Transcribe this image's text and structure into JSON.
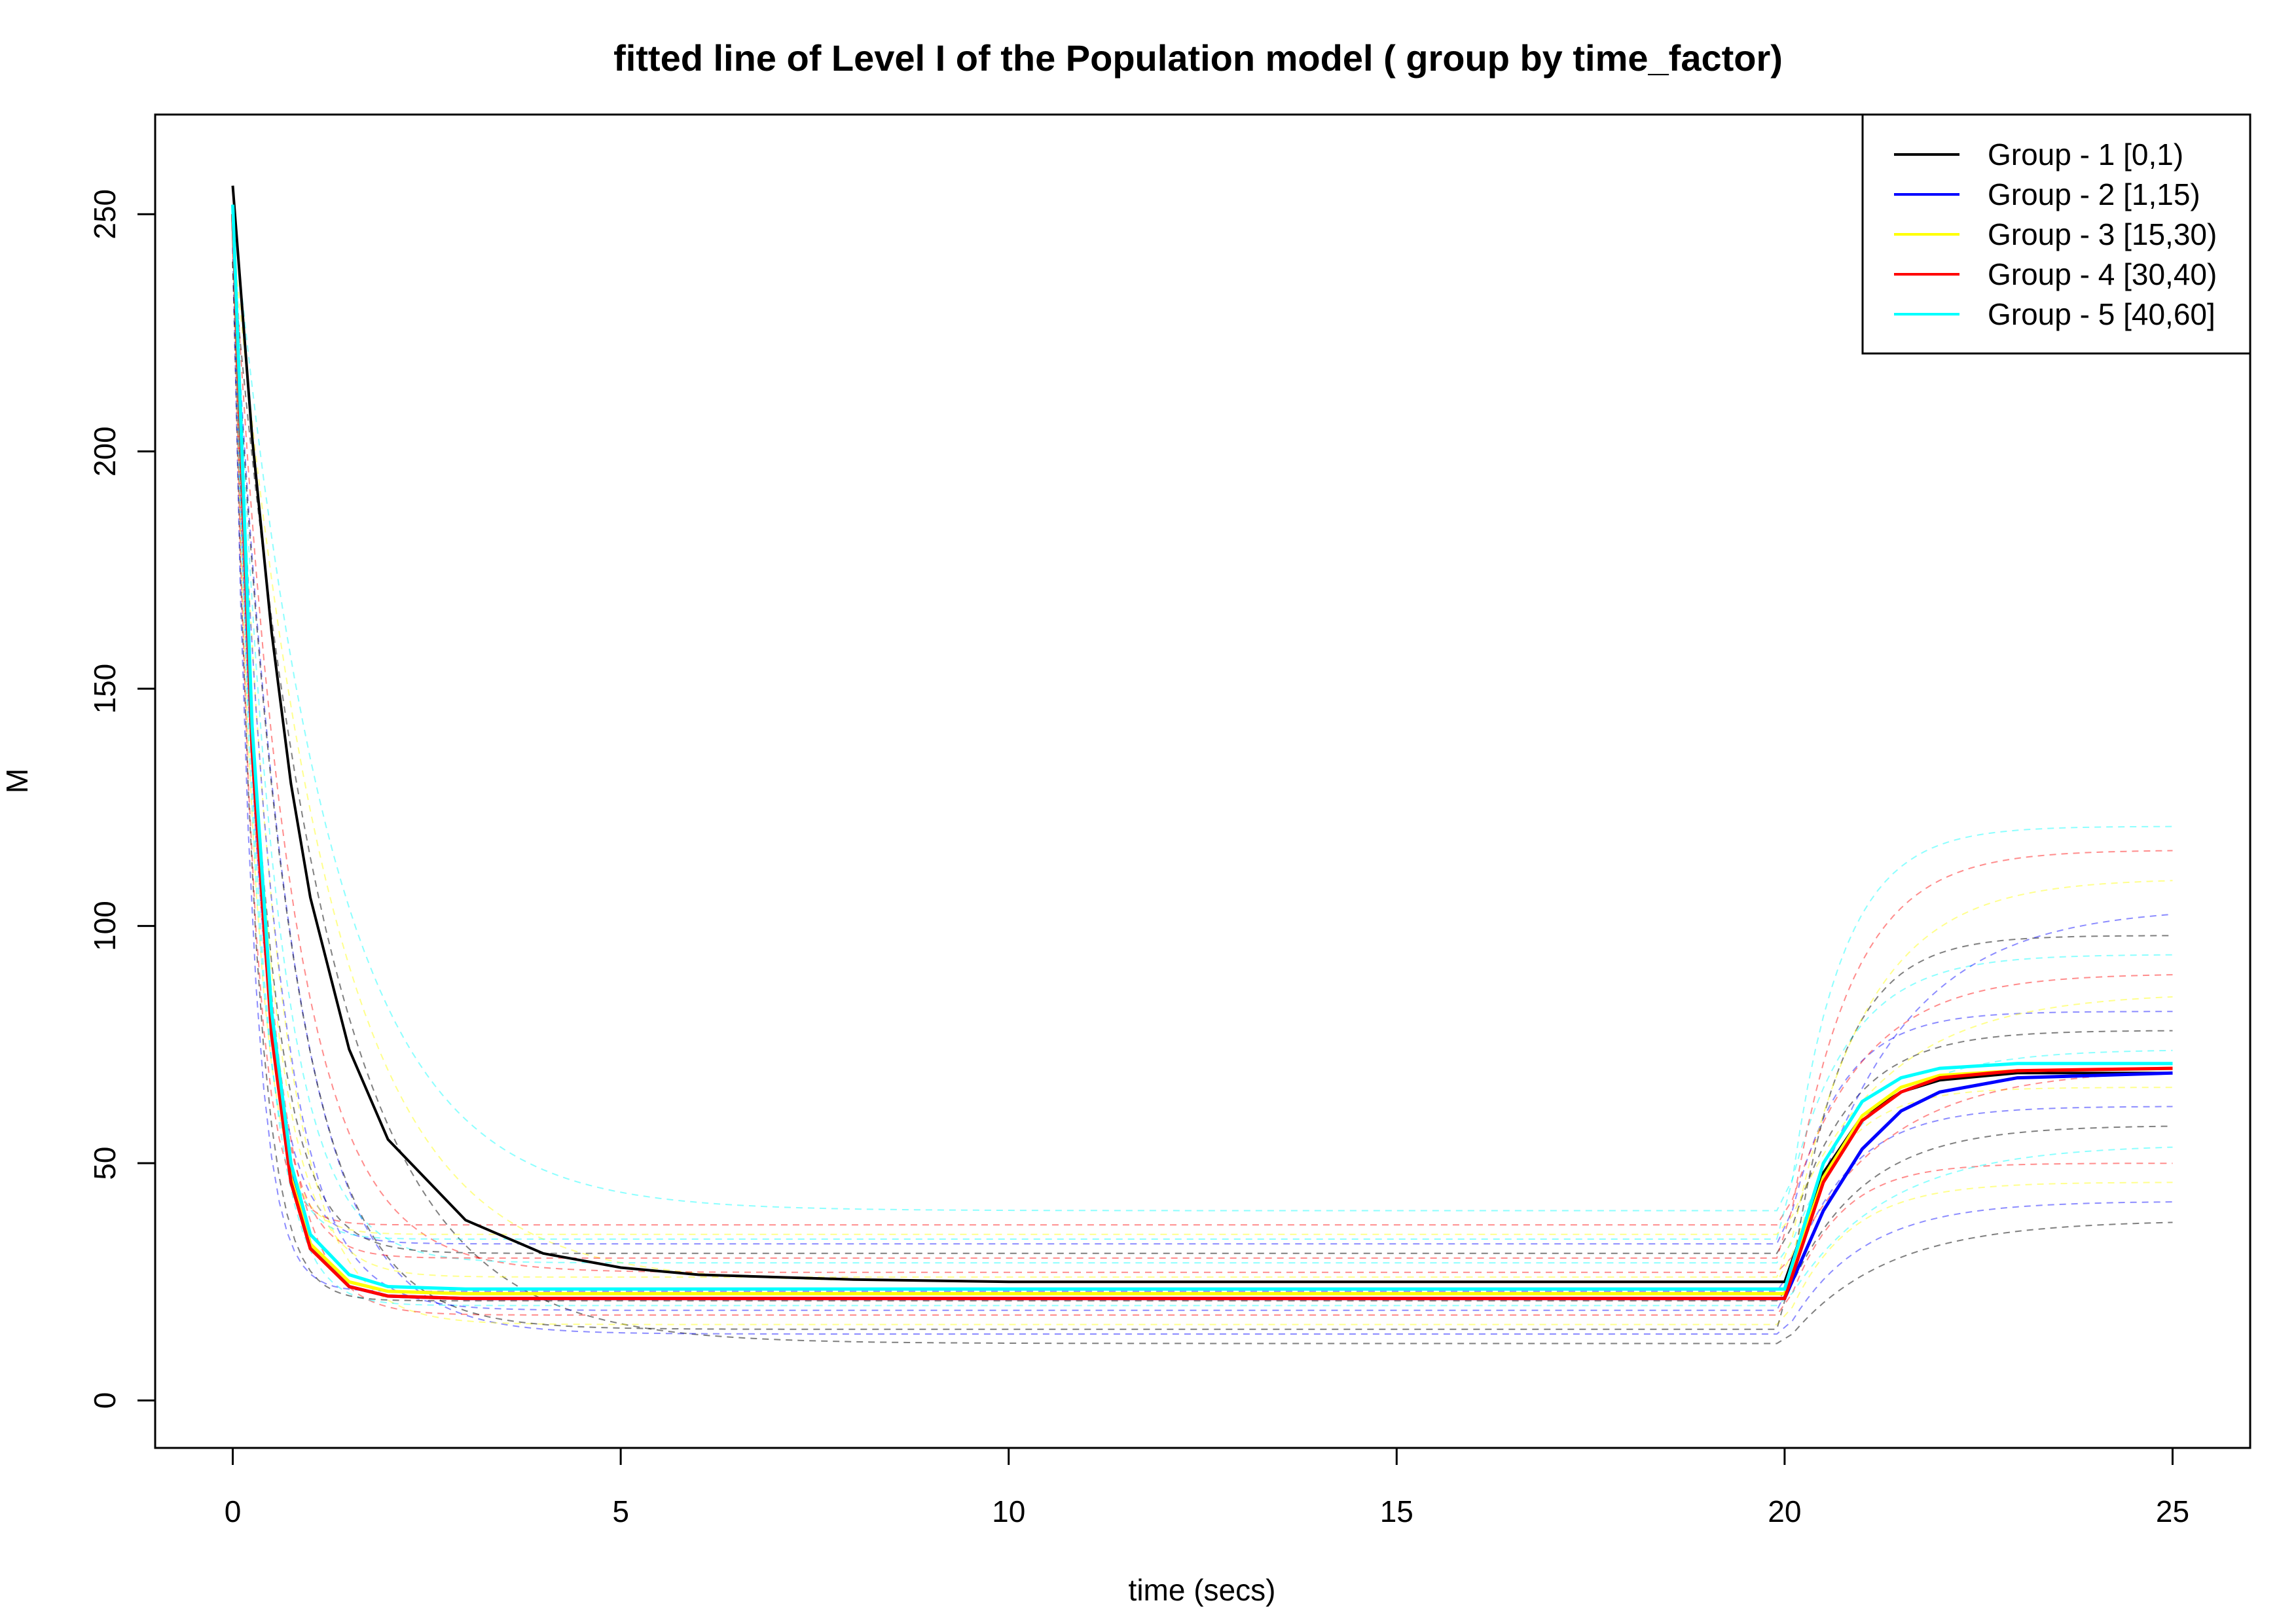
{
  "chart_data": {
    "type": "line",
    "title": "fitted line of Level I of the Population model ( group by time_factor)",
    "xlabel": "time (secs)",
    "ylabel": "M",
    "xlim": [
      -1,
      26
    ],
    "ylim": [
      -10,
      271
    ],
    "xticks": [
      0,
      5,
      10,
      15,
      20,
      25
    ],
    "yticks": [
      0,
      50,
      100,
      150,
      200,
      250
    ],
    "legend_position": "top-right",
    "grid": false,
    "series": [
      {
        "name": "Group - 1 [0,1)",
        "color": "#000000",
        "x": [
          0,
          0.25,
          0.5,
          0.75,
          1,
          1.5,
          2,
          3,
          4,
          5,
          6,
          8,
          10,
          15,
          20,
          20.5,
          21,
          21.5,
          22,
          23,
          25
        ],
        "y": [
          256,
          203,
          162,
          130,
          106,
          74,
          55,
          38,
          31,
          28,
          26.5,
          25.5,
          25,
          25,
          25,
          48,
          60,
          65,
          67.5,
          69,
          69
        ]
      },
      {
        "name": "Group - 2 [1,15)",
        "color": "#0000ff",
        "x": [
          0,
          0.25,
          0.5,
          0.75,
          1,
          1.5,
          2,
          3,
          5,
          10,
          15,
          20,
          20.5,
          21,
          21.5,
          22,
          23,
          25
        ],
        "y": [
          250,
          140,
          80,
          48,
          33,
          24,
          22,
          21.5,
          21.5,
          21.5,
          21.5,
          21.5,
          40,
          53,
          61,
          65,
          68,
          69
        ]
      },
      {
        "name": "Group - 3 [15,30)",
        "color": "#ffff00",
        "x": [
          0,
          0.25,
          0.5,
          0.75,
          1,
          1.5,
          2,
          3,
          5,
          10,
          15,
          20,
          20.5,
          21,
          21.5,
          22,
          23,
          25
        ],
        "y": [
          250,
          138,
          78,
          47,
          33,
          25,
          23,
          22.5,
          22.5,
          22.5,
          22.5,
          22.5,
          47,
          60,
          66,
          68.5,
          69.5,
          70
        ]
      },
      {
        "name": "Group - 4 [30,40)",
        "color": "#ff0000",
        "x": [
          0,
          0.25,
          0.5,
          0.75,
          1,
          1.5,
          2,
          3,
          5,
          10,
          15,
          20,
          20.5,
          21,
          21.5,
          22,
          23,
          25
        ],
        "y": [
          250,
          137,
          77,
          46,
          32,
          24,
          22,
          21.5,
          21.5,
          21.5,
          21.5,
          21.5,
          46,
          59,
          65,
          68,
          69.5,
          70
        ]
      },
      {
        "name": "Group - 5 [40,60]",
        "color": "#00ffff",
        "x": [
          0,
          0.25,
          0.5,
          0.75,
          1,
          1.5,
          2,
          3,
          5,
          10,
          15,
          20,
          20.5,
          21,
          21.5,
          22,
          23,
          25
        ],
        "y": [
          252,
          142,
          82,
          50,
          35,
          26.5,
          24,
          23.5,
          23.5,
          23.5,
          23.5,
          23.5,
          50,
          63,
          68,
          70,
          71,
          71
        ]
      }
    ],
    "background_curves": {
      "style": "dashed",
      "colors": [
        "#000000",
        "#0000ff",
        "#ffff00",
        "#ff0000",
        "#00ffff"
      ],
      "early_plateau": [
        12,
        14,
        16,
        18,
        20,
        21,
        23,
        25,
        27,
        29,
        31,
        33,
        35,
        37,
        40,
        15,
        19,
        26,
        30,
        34
      ],
      "late_plateau": [
        38,
        42,
        46,
        50,
        54,
        58,
        62,
        66,
        70,
        74,
        78,
        82,
        86,
        90,
        94,
        98,
        104,
        110,
        116,
        121
      ]
    }
  }
}
